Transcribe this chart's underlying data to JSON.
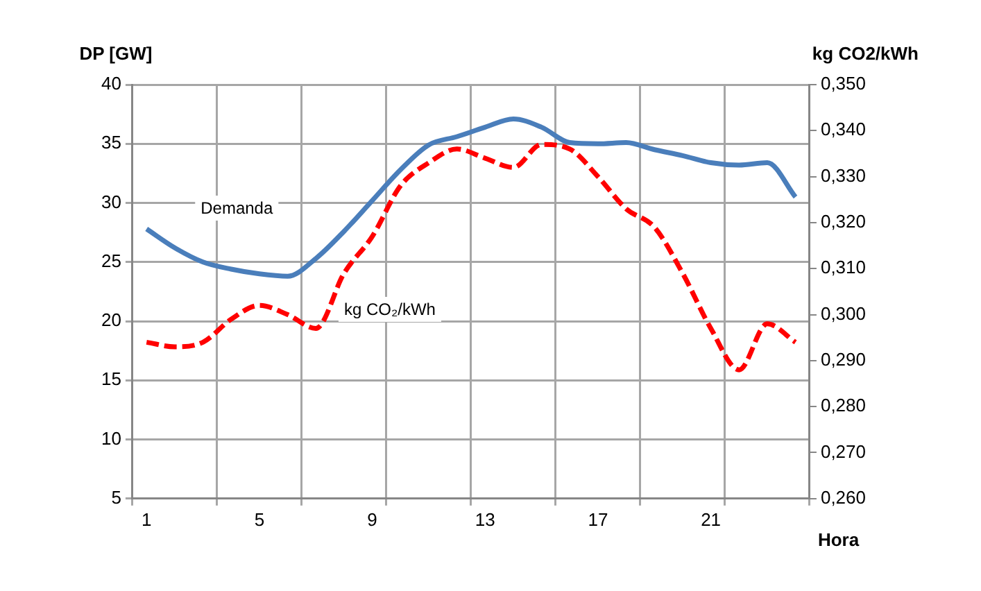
{
  "chart_data": {
    "type": "line",
    "xlabel": "Hora",
    "ylabel": "DP [GW]",
    "y2label": "kg CO2/kWh",
    "x": [
      1,
      2,
      3,
      4,
      5,
      6,
      7,
      8,
      9,
      10,
      11,
      12,
      13,
      14,
      15,
      16,
      17,
      18,
      19,
      20,
      21,
      22,
      23,
      24
    ],
    "xlim": [
      0.5,
      24.5
    ],
    "xticks": [
      {
        "value": 0.5,
        "label": null
      },
      1,
      {
        "value": 3.5,
        "label": null
      },
      5,
      {
        "value": 6.5,
        "label": null
      },
      9,
      {
        "value": 9.5,
        "label": null
      },
      {
        "value": 12.5,
        "label": null
      },
      13,
      {
        "value": 15.5,
        "label": null
      },
      17,
      {
        "value": 18.5,
        "label": null
      },
      21,
      {
        "value": 21.5,
        "label": null
      },
      {
        "value": 24.5,
        "label": null
      }
    ],
    "ylim": [
      5,
      40
    ],
    "yticks": [
      5,
      10,
      15,
      20,
      25,
      30,
      35,
      40
    ],
    "y2lim": [
      0.26,
      0.35
    ],
    "y2ticks": [
      {
        "value": 0.26,
        "label": "0,260"
      },
      {
        "value": 0.27,
        "label": "0,270"
      },
      {
        "value": 0.28,
        "label": "0,280"
      },
      {
        "value": 0.29,
        "label": "0,290"
      },
      {
        "value": 0.3,
        "label": "0,300"
      },
      {
        "value": 0.31,
        "label": "0,310"
      },
      {
        "value": 0.32,
        "label": "0,320"
      },
      {
        "value": 0.33,
        "label": "0,330"
      },
      {
        "value": 0.34,
        "label": "0,340"
      },
      {
        "value": 0.35,
        "label": "0,350"
      }
    ],
    "grid": true,
    "legend": false,
    "marker": "none",
    "series": [
      {
        "name": "Demanda",
        "color": "#4a7ebb",
        "line_style": "solid",
        "values": [
          27.8,
          26.2,
          25.0,
          24.4,
          24.0,
          23.8,
          25.3,
          27.6,
          30.2,
          32.8,
          34.9,
          35.6,
          36.4,
          37.1,
          36.4,
          35.1,
          35.0,
          35.1,
          34.5,
          34.0,
          33.4,
          33.2,
          33.4,
          30.5
        ]
      },
      {
        "name": "kg CO₂/kWh",
        "color": "#ff0000",
        "line_style": "dashed",
        "axis": "y2",
        "values": [
          0.294,
          0.293,
          0.294,
          0.299,
          0.302,
          0.3,
          0.297,
          0.309,
          0.317,
          0.328,
          0.333,
          0.336,
          0.334,
          0.332,
          0.337,
          0.336,
          0.33,
          0.323,
          0.319,
          0.309,
          0.297,
          0.288,
          0.298,
          0.294
        ]
      }
    ]
  }
}
